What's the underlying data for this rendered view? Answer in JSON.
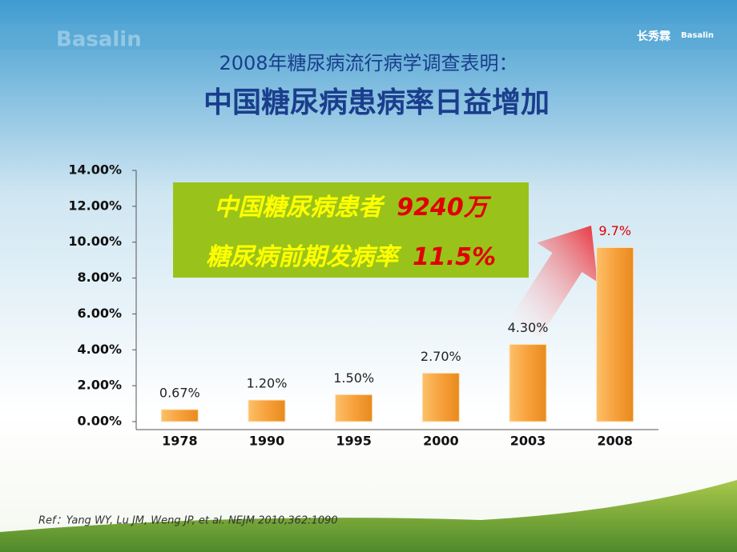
{
  "header": {
    "watermark": "Basalin",
    "brand_cn": "长秀霖",
    "brand_en": "Basalin"
  },
  "chart_data": {
    "type": "bar",
    "subtitle": "2008年糖尿病流行病学调查表明：",
    "title": "中国糖尿病患病率日益增加",
    "categories": [
      "1978",
      "1990",
      "1995",
      "2000",
      "2003",
      "2008"
    ],
    "values": [
      0.67,
      1.2,
      1.5,
      2.7,
      4.3,
      9.7
    ],
    "value_labels": [
      "0.67%",
      "1.20%",
      "1.50%",
      "2.70%",
      "4.30%",
      "9.7%"
    ],
    "color": "#f7a13b",
    "ylim": [
      0,
      14
    ],
    "yticks": [
      {
        "value": 0,
        "label": "0.00%"
      },
      {
        "value": 2,
        "label": "2.00%"
      },
      {
        "value": 4,
        "label": "4.00%"
      },
      {
        "value": 6,
        "label": "6.00%"
      },
      {
        "value": 8,
        "label": "8.00%"
      },
      {
        "value": 10,
        "label": "10.00%"
      },
      {
        "value": 12,
        "label": "12.00%"
      },
      {
        "value": 14,
        "label": "14.00%"
      }
    ],
    "grid": false,
    "annotations": [
      {
        "text": "中国糖尿病患者",
        "highlight": "9240万"
      },
      {
        "text": "糖尿病前期发病率",
        "highlight": "11.5%"
      }
    ]
  },
  "footer": {
    "ref": "Ref：Yang WY, Lu JM, Weng JP, et al. NEJM 2010,362:1090"
  }
}
